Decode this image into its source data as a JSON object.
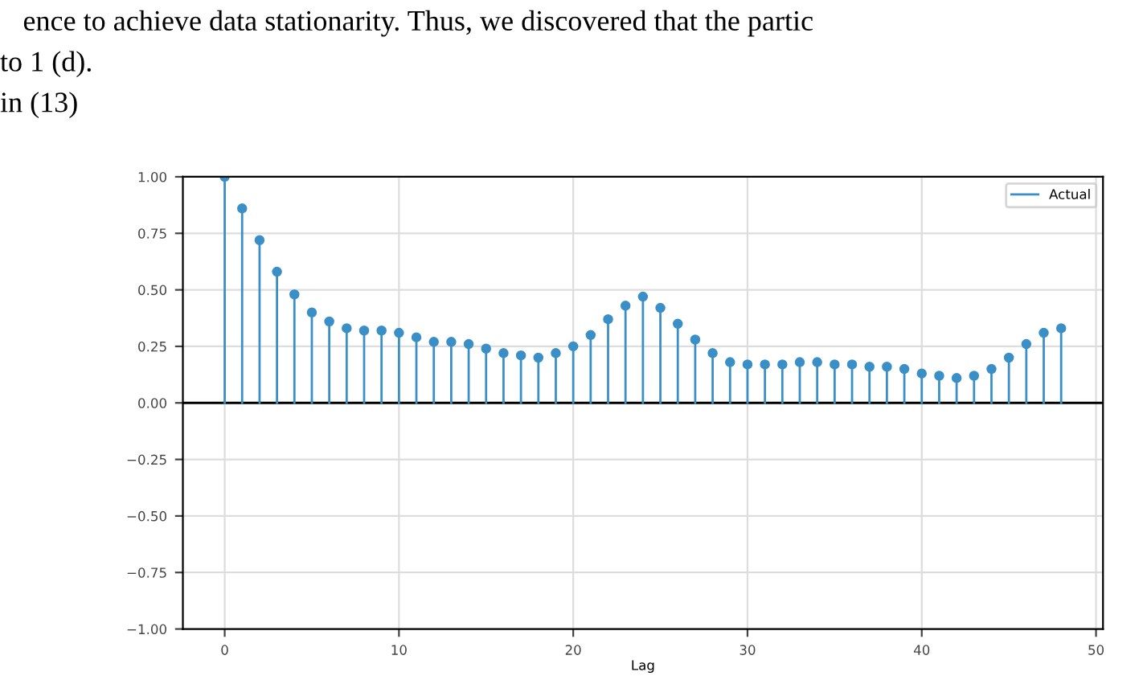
{
  "chart_data": {
    "type": "lollipop",
    "xlabel": "Lag",
    "x": [
      0,
      1,
      2,
      3,
      4,
      5,
      6,
      7,
      8,
      9,
      10,
      11,
      12,
      13,
      14,
      15,
      16,
      17,
      18,
      19,
      20,
      21,
      22,
      23,
      24,
      25,
      26,
      27,
      28,
      29,
      30,
      31,
      32,
      33,
      34,
      35,
      36,
      37,
      38,
      39,
      40,
      41,
      42,
      43,
      44,
      45,
      46,
      47,
      48
    ],
    "series": [
      {
        "name": "Actual",
        "color": "#3a8fc7",
        "values": [
          1.0,
          0.86,
          0.72,
          0.58,
          0.48,
          0.4,
          0.36,
          0.33,
          0.32,
          0.32,
          0.31,
          0.29,
          0.27,
          0.27,
          0.26,
          0.24,
          0.22,
          0.21,
          0.2,
          0.22,
          0.25,
          0.3,
          0.37,
          0.43,
          0.47,
          0.42,
          0.35,
          0.28,
          0.22,
          0.18,
          0.17,
          0.17,
          0.17,
          0.18,
          0.18,
          0.17,
          0.17,
          0.16,
          0.16,
          0.15,
          0.13,
          0.12,
          0.11,
          0.12,
          0.15,
          0.2,
          0.26,
          0.31,
          0.33
        ]
      }
    ],
    "marker": "circle",
    "xlim": [
      -2.4,
      50.4
    ],
    "ylim": [
      -1.0,
      1.0
    ],
    "xticks": [
      0,
      10,
      20,
      30,
      40,
      50
    ],
    "yticks": [
      {
        "value": -1.0,
        "label": "−1.00"
      },
      {
        "value": -0.75,
        "label": "−0.75"
      },
      {
        "value": -0.5,
        "label": "−0.50"
      },
      {
        "value": -0.25,
        "label": "−0.25"
      },
      {
        "value": 0,
        "label": "0.00"
      },
      {
        "value": 0.25,
        "label": "0.25"
      },
      {
        "value": 0.5,
        "label": "0.50"
      },
      {
        "value": 0.75,
        "label": "0.75"
      },
      {
        "value": 1.0,
        "label": "1.00"
      }
    ],
    "ref_lines": [
      {
        "axis": "y",
        "value": 0,
        "color": "#000000"
      }
    ],
    "grid": true,
    "legend": "top right",
    "annotations": [
      "ence to achieve data stationarity. Thus, we discovered that the partic",
      "to 1 (d).",
      "in (13)"
    ]
  }
}
